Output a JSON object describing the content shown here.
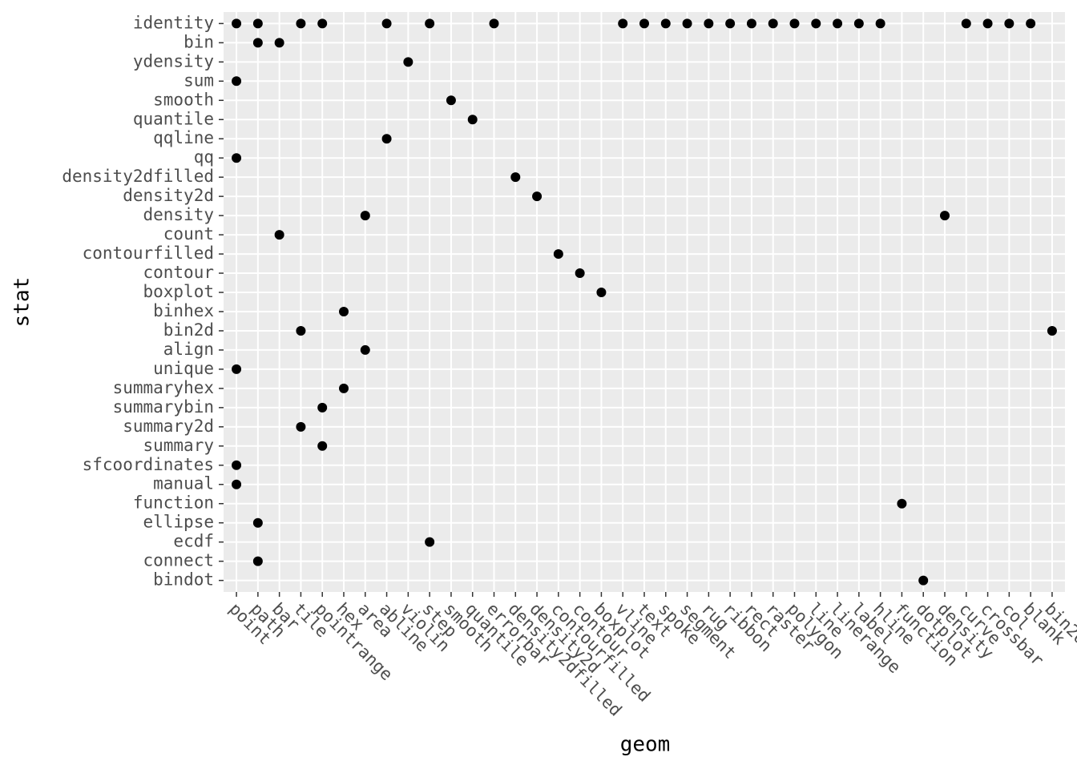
{
  "chart_data": {
    "type": "scatter",
    "x_label": "geom",
    "y_label": "stat",
    "categories": [
      "point",
      "path",
      "bar",
      "tile",
      "pointrange",
      "hex",
      "area",
      "abline",
      "violin",
      "step",
      "smooth",
      "quantile",
      "errorbar",
      "density2dfilled",
      "density2d",
      "contourfilled",
      "contour",
      "boxplot",
      "vline",
      "text",
      "spoke",
      "segment",
      "rug",
      "ribbon",
      "rect",
      "raster",
      "polygon",
      "line",
      "linerange",
      "label",
      "hline",
      "function",
      "dotplot",
      "density",
      "curve",
      "crossbar",
      "col",
      "blank",
      "bin2d"
    ],
    "y_categories": [
      "identity",
      "bin",
      "ydensity",
      "sum",
      "smooth",
      "quantile",
      "qqline",
      "qq",
      "density2dfilled",
      "density2d",
      "density",
      "count",
      "contourfilled",
      "contour",
      "boxplot",
      "binhex",
      "bin2d",
      "align",
      "unique",
      "summaryhex",
      "summarybin",
      "summary2d",
      "summary",
      "sfcoordinates",
      "manual",
      "function",
      "ellipse",
      "ecdf",
      "connect",
      "bindot"
    ],
    "x": [
      "point",
      "path",
      "tile",
      "pointrange",
      "abline",
      "step",
      "errorbar",
      "vline",
      "text",
      "spoke",
      "segment",
      "rug",
      "ribbon",
      "rect",
      "raster",
      "polygon",
      "line",
      "linerange",
      "label",
      "hline",
      "curve",
      "crossbar",
      "col",
      "blank",
      "path",
      "bar",
      "violin",
      "point",
      "smooth",
      "quantile",
      "abline",
      "point",
      "density2dfilled",
      "density2d",
      "area",
      "density",
      "bar",
      "contourfilled",
      "contour",
      "boxplot",
      "hex",
      "tile",
      "bin2d",
      "area",
      "point",
      "hex",
      "pointrange",
      "tile",
      "pointrange",
      "point",
      "point",
      "function",
      "path",
      "step",
      "path",
      "dotplot"
    ],
    "y": [
      "identity",
      "identity",
      "identity",
      "identity",
      "identity",
      "identity",
      "identity",
      "identity",
      "identity",
      "identity",
      "identity",
      "identity",
      "identity",
      "identity",
      "identity",
      "identity",
      "identity",
      "identity",
      "identity",
      "identity",
      "identity",
      "identity",
      "identity",
      "identity",
      "bin",
      "bin",
      "ydensity",
      "sum",
      "smooth",
      "quantile",
      "qqline",
      "qq",
      "density2dfilled",
      "density2d",
      "density",
      "density",
      "count",
      "contourfilled",
      "contour",
      "boxplot",
      "binhex",
      "bin2d",
      "bin2d",
      "align",
      "unique",
      "summaryhex",
      "summarybin",
      "summary2d",
      "summary",
      "sfcoordinates",
      "manual",
      "function",
      "ellipse",
      "ecdf",
      "connect",
      "bindot"
    ],
    "color": "#000000",
    "grid": true
  }
}
